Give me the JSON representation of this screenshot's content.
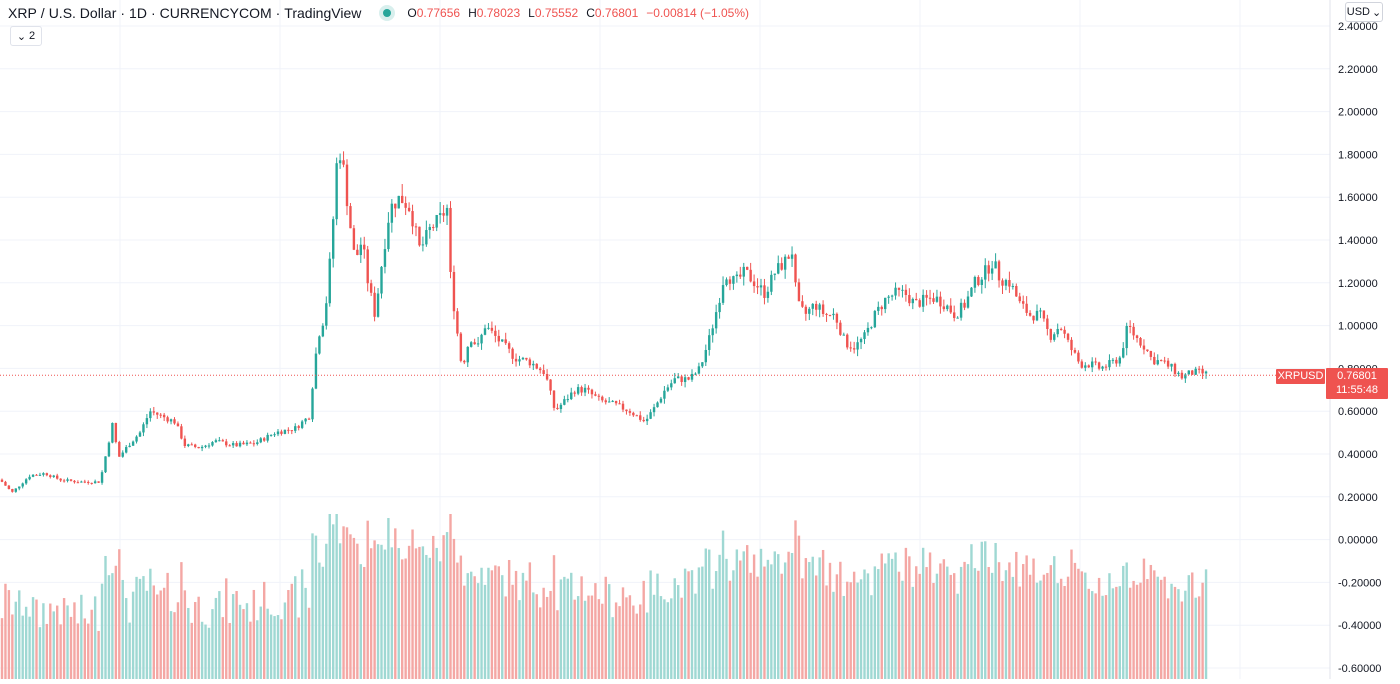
{
  "header": {
    "symbol": "XRP",
    "quote": "U.S. Dollar",
    "interval": "1D",
    "exchange": "CURRENCYCOM",
    "source": "TradingView",
    "open_label": "O",
    "open": "0.77656",
    "high_label": "H",
    "high": "0.78023",
    "low_label": "L",
    "low": "0.75552",
    "close_label": "C",
    "close": "0.76801",
    "change": "−0.00814 (−1.05%)"
  },
  "controls": {
    "collapse_count": "2",
    "currency": "USD"
  },
  "price_label": {
    "ticker": "XRPUSD",
    "price": "0.76801",
    "countdown": "11:55:48"
  },
  "colors": {
    "up": "#26a69a",
    "down": "#ef5350",
    "volume_up": "#9fd8d3",
    "volume_down": "#f4a7a4",
    "grid": "#f0f3fa",
    "axis_text": "#131722"
  },
  "chart_data": {
    "type": "candlestick",
    "title": "XRP / U.S. Dollar · 1D · CURRENCYCOM",
    "y_ticks": [
      "2.40000",
      "2.20000",
      "2.00000",
      "1.80000",
      "1.60000",
      "1.40000",
      "1.20000",
      "1.00000",
      "0.80000",
      "0.60000",
      "0.40000",
      "0.20000",
      "0.00000",
      "-0.20000",
      "-0.40000",
      "-0.60000"
    ],
    "ylim": [
      -0.62,
      2.45
    ],
    "last_price": 0.76801,
    "grid": true,
    "price_trend": [
      [
        0,
        0.28
      ],
      [
        12,
        0.22
      ],
      [
        30,
        0.3
      ],
      [
        45,
        0.31
      ],
      [
        60,
        0.28
      ],
      [
        78,
        0.27
      ],
      [
        100,
        0.27
      ],
      [
        106,
        0.4
      ],
      [
        113,
        0.55
      ],
      [
        118,
        0.38
      ],
      [
        130,
        0.45
      ],
      [
        140,
        0.5
      ],
      [
        150,
        0.6
      ],
      [
        160,
        0.58
      ],
      [
        175,
        0.55
      ],
      [
        185,
        0.44
      ],
      [
        200,
        0.43
      ],
      [
        215,
        0.46
      ],
      [
        235,
        0.44
      ],
      [
        255,
        0.45
      ],
      [
        275,
        0.5
      ],
      [
        295,
        0.52
      ],
      [
        310,
        0.58
      ],
      [
        313,
        0.75
      ],
      [
        318,
        0.95
      ],
      [
        325,
        1.05
      ],
      [
        330,
        1.3
      ],
      [
        334,
        1.55
      ],
      [
        338,
        1.85
      ],
      [
        343,
        1.75
      ],
      [
        348,
        1.55
      ],
      [
        355,
        1.3
      ],
      [
        362,
        1.4
      ],
      [
        368,
        1.2
      ],
      [
        375,
        1.05
      ],
      [
        382,
        1.3
      ],
      [
        390,
        1.55
      ],
      [
        400,
        1.6
      ],
      [
        410,
        1.55
      ],
      [
        420,
        1.35
      ],
      [
        430,
        1.45
      ],
      [
        440,
        1.5
      ],
      [
        447,
        1.55
      ],
      [
        450,
        1.25
      ],
      [
        455,
        1.05
      ],
      [
        462,
        0.8
      ],
      [
        470,
        0.95
      ],
      [
        478,
        0.9
      ],
      [
        485,
        1.0
      ],
      [
        495,
        0.95
      ],
      [
        505,
        0.9
      ],
      [
        515,
        0.85
      ],
      [
        530,
        0.83
      ],
      [
        545,
        0.78
      ],
      [
        555,
        0.6
      ],
      [
        565,
        0.65
      ],
      [
        575,
        0.7
      ],
      [
        585,
        0.7
      ],
      [
        600,
        0.65
      ],
      [
        615,
        0.63
      ],
      [
        630,
        0.6
      ],
      [
        645,
        0.55
      ],
      [
        655,
        0.62
      ],
      [
        665,
        0.7
      ],
      [
        675,
        0.75
      ],
      [
        690,
        0.75
      ],
      [
        700,
        0.8
      ],
      [
        710,
        0.95
      ],
      [
        718,
        1.1
      ],
      [
        725,
        1.25
      ],
      [
        735,
        1.2
      ],
      [
        745,
        1.25
      ],
      [
        755,
        1.2
      ],
      [
        765,
        1.15
      ],
      [
        775,
        1.25
      ],
      [
        785,
        1.3
      ],
      [
        792,
        1.35
      ],
      [
        797,
        1.1
      ],
      [
        805,
        1.05
      ],
      [
        815,
        1.1
      ],
      [
        825,
        1.05
      ],
      [
        835,
        1.05
      ],
      [
        845,
        0.92
      ],
      [
        855,
        0.9
      ],
      [
        865,
        0.95
      ],
      [
        875,
        1.05
      ],
      [
        885,
        1.12
      ],
      [
        895,
        1.15
      ],
      [
        905,
        1.15
      ],
      [
        915,
        1.1
      ],
      [
        925,
        1.12
      ],
      [
        935,
        1.13
      ],
      [
        945,
        1.1
      ],
      [
        955,
        1.05
      ],
      [
        965,
        1.1
      ],
      [
        975,
        1.2
      ],
      [
        985,
        1.25
      ],
      [
        993,
        1.3
      ],
      [
        1000,
        1.22
      ],
      [
        1010,
        1.2
      ],
      [
        1020,
        1.1
      ],
      [
        1030,
        1.05
      ],
      [
        1040,
        1.05
      ],
      [
        1050,
        0.95
      ],
      [
        1060,
        1.0
      ],
      [
        1070,
        0.9
      ],
      [
        1080,
        0.82
      ],
      [
        1090,
        0.82
      ],
      [
        1100,
        0.8
      ],
      [
        1110,
        0.82
      ],
      [
        1120,
        0.85
      ],
      [
        1128,
        1.0
      ],
      [
        1135,
        0.95
      ],
      [
        1145,
        0.9
      ],
      [
        1152,
        0.84
      ],
      [
        1162,
        0.83
      ],
      [
        1172,
        0.8
      ],
      [
        1182,
        0.76
      ],
      [
        1192,
        0.78
      ],
      [
        1200,
        0.78
      ],
      [
        1208,
        0.77
      ]
    ],
    "volume_bars": "one bar per candle, color matches candle direction"
  }
}
